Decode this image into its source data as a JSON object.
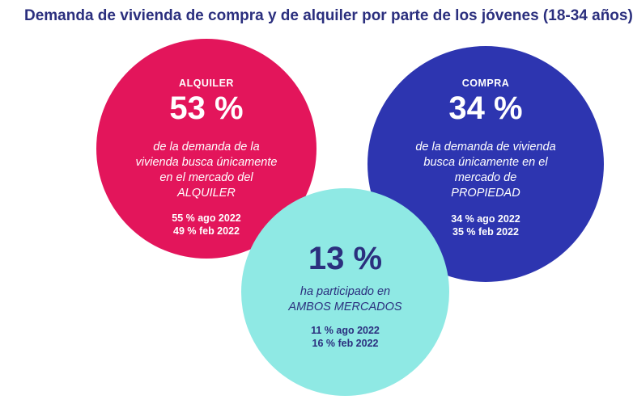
{
  "title": "Demanda de vivienda de compra y de alquiler por parte de los jóvenes (18-34 años)",
  "colors": {
    "title": "#2b2f7e",
    "alquiler": "#e3155b",
    "compra": "#2d35b0",
    "ambos": "#8fe9e4"
  },
  "alquiler": {
    "heading": "ALQUILER",
    "percent": "53 %",
    "desc": [
      "de la demanda de la",
      "vivienda busca únicamente",
      "en el mercado del",
      "ALQUILER"
    ],
    "prev": [
      "55 % ago 2022",
      "49 % feb 2022"
    ]
  },
  "compra": {
    "heading": "COMPRA",
    "percent": "34 %",
    "desc": [
      "de la demanda de vivienda",
      "busca únicamente en el",
      "mercado de",
      "PROPIEDAD"
    ],
    "prev": [
      "34 % ago 2022",
      "35 % feb 2022"
    ]
  },
  "ambos": {
    "percent": "13 %",
    "desc": [
      "ha participado en",
      "AMBOS MERCADOS"
    ],
    "prev": [
      "11 % ago 2022",
      "16 % feb 2022"
    ]
  }
}
